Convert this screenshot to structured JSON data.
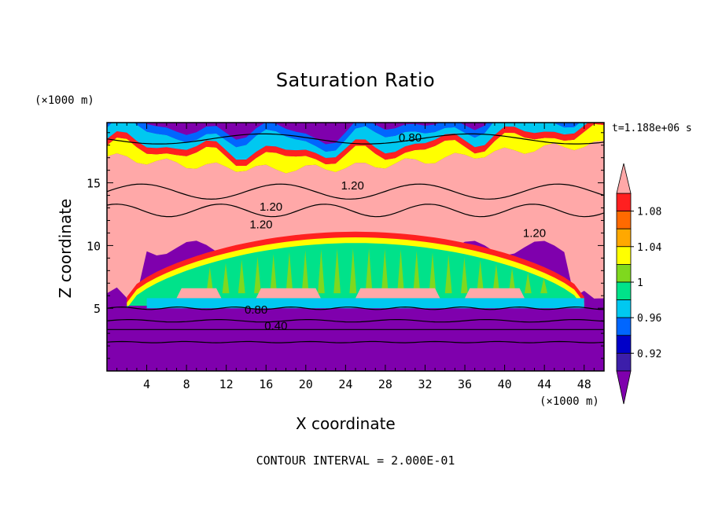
{
  "chart_data": {
    "type": "heatmap",
    "title": "Saturation Ratio",
    "xlabel": "X coordinate",
    "ylabel": "Z coordinate",
    "x_units": "(×1000 m)",
    "y_units": "(×1000 m)",
    "time_label": "t=1.188e+06 s",
    "footer": "CONTOUR INTERVAL = 2.000E-01",
    "xlim": [
      0,
      50
    ],
    "ylim": [
      0,
      19.8
    ],
    "xticks": [
      4,
      8,
      12,
      16,
      20,
      24,
      28,
      32,
      36,
      40,
      44,
      48
    ],
    "yticks": [
      5,
      10,
      15
    ],
    "colorbar": {
      "labels": [
        "1.08",
        "1.04",
        "1",
        "0.96",
        "0.92"
      ],
      "label_values": [
        1.08,
        1.04,
        1.0,
        0.96,
        0.92
      ],
      "bins": [
        {
          "min": 1.1,
          "max": null,
          "color": "#ffa8a8"
        },
        {
          "min": 1.08,
          "max": 1.1,
          "color": "#ff2020"
        },
        {
          "min": 1.06,
          "max": 1.08,
          "color": "#ff6a00"
        },
        {
          "min": 1.04,
          "max": 1.06,
          "color": "#ffa800"
        },
        {
          "min": 1.02,
          "max": 1.04,
          "color": "#ffff00"
        },
        {
          "min": 1.0,
          "max": 1.02,
          "color": "#7fd81e"
        },
        {
          "min": 0.98,
          "max": 1.0,
          "color": "#00e28a"
        },
        {
          "min": 0.96,
          "max": 0.98,
          "color": "#00c8f0"
        },
        {
          "min": 0.94,
          "max": 0.96,
          "color": "#0066ff"
        },
        {
          "min": 0.92,
          "max": 0.94,
          "color": "#0000c8"
        },
        {
          "min": 0.9,
          "max": 0.92,
          "color": "#3c1eaa"
        },
        {
          "min": null,
          "max": 0.9,
          "color": "#7f00ad"
        }
      ]
    },
    "contour_labels": [
      {
        "text": "0.80",
        "x": 30.5,
        "z": 18.6
      },
      {
        "text": "1.20",
        "x": 24.7,
        "z": 14.8
      },
      {
        "text": "1.20",
        "x": 16.5,
        "z": 13.1
      },
      {
        "text": "1.20",
        "x": 15.5,
        "z": 11.7
      },
      {
        "text": "1.20",
        "x": 43.0,
        "z": 11.0
      },
      {
        "text": "0.80",
        "x": 15.0,
        "z": 4.9
      },
      {
        "text": "0.40",
        "x": 17.0,
        "z": 3.6
      }
    ]
  }
}
